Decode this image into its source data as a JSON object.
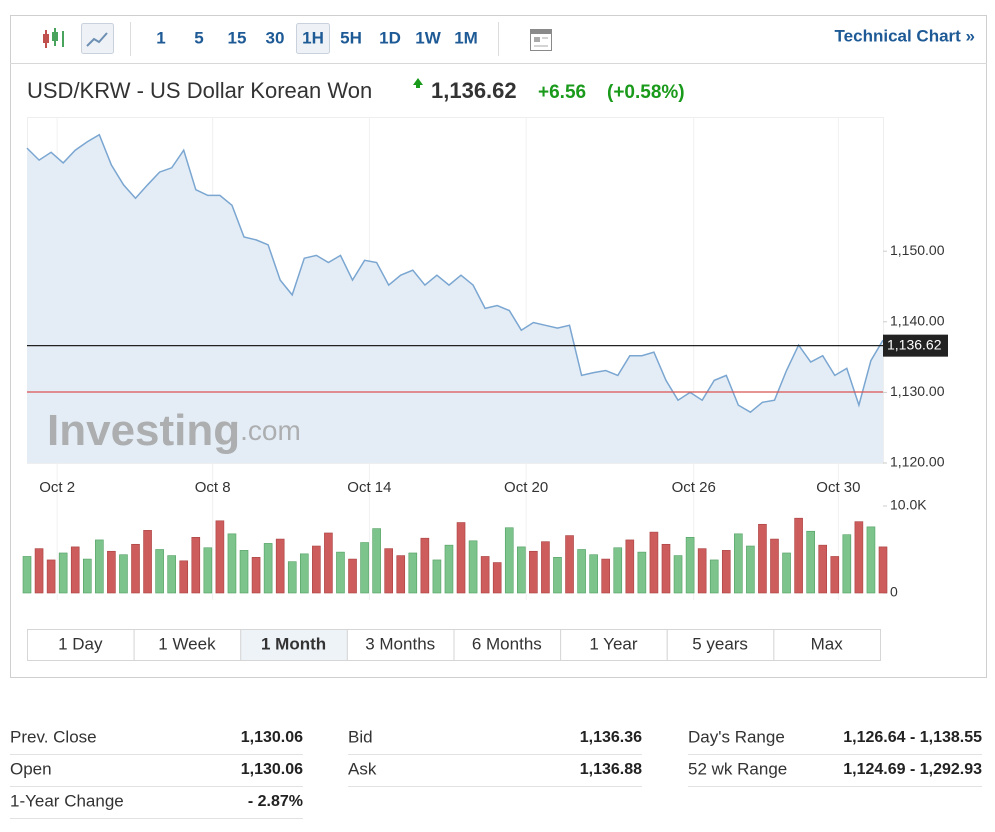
{
  "toolbar": {
    "intervals": [
      "1",
      "5",
      "15",
      "30",
      "1H",
      "5H",
      "1D",
      "1W",
      "1M"
    ],
    "active_interval": "1H",
    "technical_chart": "Technical Chart »"
  },
  "header": {
    "title": "USD/KRW - US Dollar Korean Won",
    "price": "1,136.62",
    "change": "+6.56",
    "change_percent": "(+0.58%)"
  },
  "chart_data": {
    "type": "line",
    "color": "#7aa6d1",
    "area_color": "#e4edf5",
    "values": [
      1164.6,
      1162.9,
      1164,
      1162.5,
      1164.3,
      1165.5,
      1166.5,
      1162.2,
      1159.4,
      1157.5,
      1159.4,
      1161.2,
      1161.8,
      1164.3,
      1158.7,
      1157.9,
      1157.9,
      1156.5,
      1152,
      1151.6,
      1150.9,
      1145.9,
      1143.8,
      1149,
      1149.4,
      1148.4,
      1149.4,
      1145.9,
      1148.7,
      1148.4,
      1145.2,
      1146.6,
      1147.3,
      1145.2,
      1146.6,
      1145.2,
      1146.6,
      1145.2,
      1141.9,
      1142.3,
      1141.6,
      1138.8,
      1139.9,
      1139.5,
      1139.1,
      1139.5,
      1132.4,
      1132.8,
      1133.1,
      1132.4,
      1135.2,
      1135.2,
      1135.7,
      1131.7,
      1128.9,
      1130,
      1128.9,
      1131.7,
      1132.4,
      1128.2,
      1127.2,
      1128.6,
      1128.9,
      1133.1,
      1136.7,
      1134.3,
      1135.2,
      1132.4,
      1133.4,
      1128.2,
      1134.5,
      1137.4
    ],
    "xlim": [
      0,
      71
    ],
    "xticks": [
      {
        "value": 2.5,
        "label": "Oct 2"
      },
      {
        "value": 15.4,
        "label": "Oct 8"
      },
      {
        "value": 28.4,
        "label": "Oct 14"
      },
      {
        "value": 41.4,
        "label": "Oct 20"
      },
      {
        "value": 55.3,
        "label": "Oct 26"
      },
      {
        "value": 67.3,
        "label": "Oct 30"
      }
    ],
    "ylim": [
      1120,
      1169
    ],
    "yticks": [
      {
        "value": 1120,
        "label": "1,120.00"
      },
      {
        "value": 1130,
        "label": "1,130.00"
      },
      {
        "value": 1140,
        "label": "1,140.00"
      },
      {
        "value": 1150,
        "label": "1,150.00"
      }
    ],
    "last": {
      "value": 1136.62,
      "label": "1,136.62",
      "color": "#222222"
    },
    "prev_close": {
      "value": 1130.06,
      "color": "#d9534f"
    },
    "watermark": {
      "brand": "Investing",
      "suffix": ".com"
    },
    "volume": {
      "ylim": [
        0,
        10000
      ],
      "yticks": [
        {
          "value": 10000,
          "label": "10.0K"
        },
        0
      ],
      "values": [
        4200,
        5100,
        3800,
        4600,
        5300,
        3900,
        6100,
        4800,
        4400,
        5600,
        7200,
        5000,
        4300,
        3700,
        6400,
        5200,
        8300,
        6800,
        4900,
        4100,
        5700,
        6200,
        3600,
        4500,
        5400,
        6900,
        4700,
        3900,
        5800,
        7400,
        5100,
        4300,
        4600,
        6300,
        3800,
        5500,
        8100,
        6000,
        4200,
        3500,
        7500,
        5300,
        4800,
        5900,
        4100,
        6600,
        5000,
        4400,
        3900,
        5200,
        6100,
        4700,
        7000,
        5600,
        4300,
        6400,
        5100,
        3800,
        4900,
        6800,
        5400,
        7900,
        6200,
        4600,
        8600,
        7100,
        5500,
        4200,
        6700,
        8200,
        7600,
        5300
      ],
      "colors": [
        "#7dc48c",
        "#cd5c5c",
        "#cd5c5c",
        "#7dc48c",
        "#cd5c5c",
        "#7dc48c",
        "#7dc48c",
        "#cd5c5c",
        "#7dc48c",
        "#cd5c5c",
        "#cd5c5c",
        "#7dc48c",
        "#7dc48c",
        "#cd5c5c",
        "#cd5c5c",
        "#7dc48c",
        "#cd5c5c",
        "#7dc48c",
        "#7dc48c",
        "#cd5c5c",
        "#7dc48c",
        "#cd5c5c",
        "#7dc48c",
        "#7dc48c",
        "#cd5c5c",
        "#cd5c5c",
        "#7dc48c",
        "#cd5c5c",
        "#7dc48c",
        "#7dc48c",
        "#cd5c5c",
        "#cd5c5c",
        "#7dc48c",
        "#cd5c5c",
        "#7dc48c",
        "#7dc48c",
        "#cd5c5c",
        "#7dc48c",
        "#cd5c5c",
        "#cd5c5c",
        "#7dc48c",
        "#7dc48c",
        "#cd5c5c",
        "#cd5c5c",
        "#7dc48c",
        "#cd5c5c",
        "#7dc48c",
        "#7dc48c",
        "#cd5c5c",
        "#7dc48c",
        "#cd5c5c",
        "#7dc48c",
        "#cd5c5c",
        "#cd5c5c",
        "#7dc48c",
        "#7dc48c",
        "#cd5c5c",
        "#7dc48c",
        "#cd5c5c",
        "#7dc48c",
        "#7dc48c",
        "#cd5c5c",
        "#cd5c5c",
        "#7dc48c",
        "#cd5c5c",
        "#7dc48c",
        "#cd5c5c",
        "#cd5c5c",
        "#7dc48c",
        "#cd5c5c",
        "#7dc48c",
        "#cd5c5c"
      ]
    }
  },
  "ranges": [
    "1 Day",
    "1 Week",
    "1 Month",
    "3 Months",
    "6 Months",
    "1 Year",
    "5 years",
    "Max"
  ],
  "active_range": "1 Month",
  "stats": [
    [
      {
        "label": "Prev. Close",
        "value": "1,130.06"
      },
      {
        "label": "Open",
        "value": "1,130.06"
      },
      {
        "label": "1-Year Change",
        "value": "- 2.87%"
      }
    ],
    [
      {
        "label": "Bid",
        "value": "1,136.36"
      },
      {
        "label": "Ask",
        "value": "1,136.88"
      }
    ],
    [
      {
        "label": "Day's Range",
        "value": "1,126.64 - 1,138.55"
      },
      {
        "label": "52 wk Range",
        "value": "1,124.69 - 1,292.93"
      }
    ]
  ]
}
